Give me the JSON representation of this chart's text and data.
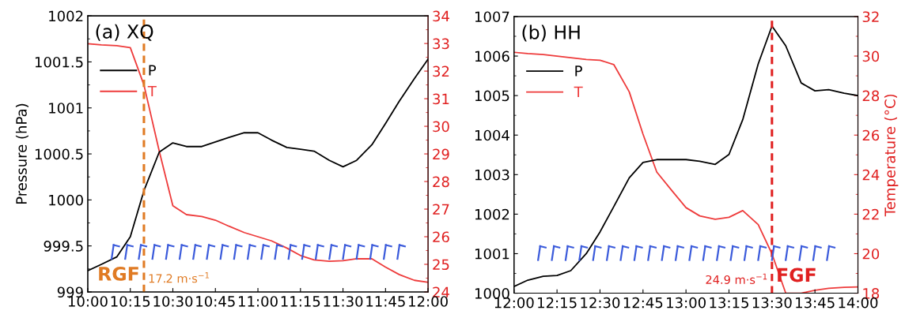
{
  "chart_data": [
    {
      "type": "line",
      "title": "(a) XQ",
      "ylabel": "Pressure (hPa)",
      "x": [
        10.0,
        10.08,
        10.17,
        10.25,
        10.33,
        10.42,
        10.5,
        10.58,
        10.67,
        10.75,
        10.83,
        10.92,
        11.0,
        11.08,
        11.17,
        11.25,
        11.33,
        11.42,
        11.5,
        11.58,
        11.67,
        11.75,
        11.83,
        11.92,
        12.0
      ],
      "series": [
        {
          "name": "P",
          "color": "#000000",
          "values": [
            999.23,
            999.3,
            999.38,
            999.6,
            1000.1,
            1000.52,
            1000.62,
            1000.58,
            1000.58,
            1000.63,
            1000.68,
            1000.73,
            1000.73,
            1000.65,
            1000.57,
            1000.55,
            1000.53,
            1000.43,
            1000.36,
            1000.43,
            1000.6,
            1000.83,
            1001.07,
            1001.32,
            1001.53
          ]
        },
        {
          "name": "T",
          "color": "#ee3b3b",
          "axis": "y2",
          "values": [
            32.99,
            32.95,
            32.92,
            32.85,
            31.5,
            29.1,
            27.12,
            26.8,
            26.73,
            26.6,
            26.38,
            26.15,
            26.0,
            25.85,
            25.59,
            25.32,
            25.16,
            25.11,
            25.13,
            25.2,
            25.2,
            24.9,
            24.63,
            24.42,
            24.35
          ]
        }
      ],
      "xlim": [
        10,
        12
      ],
      "xticks": [
        {
          "value": 10,
          "label": "10:00"
        },
        {
          "value": 10.25,
          "label": "10:15"
        },
        {
          "value": 10.5,
          "label": "10:30"
        },
        {
          "value": 10.75,
          "label": "10:45"
        },
        {
          "value": 11,
          "label": "11:00"
        },
        {
          "value": 11.25,
          "label": "11:15"
        },
        {
          "value": 11.5,
          "label": "11:30"
        },
        {
          "value": 11.75,
          "label": "11:45"
        },
        {
          "value": 12,
          "label": "12:00"
        }
      ],
      "ylim": [
        999,
        1002
      ],
      "yticks": [
        999,
        999.5,
        1000,
        1000.5,
        1001,
        1001.5,
        1002
      ],
      "y2lim": [
        24,
        34
      ],
      "y2ticks": [
        24,
        25,
        26,
        27,
        28,
        29,
        30,
        31,
        32,
        33,
        34
      ],
      "ref_lines": [
        {
          "axis": "x",
          "value": 10.33,
          "color": "#e07b24",
          "line_style": "dashed"
        }
      ],
      "annotations": [
        "RGF",
        "17.2 m·s$^{−1}$"
      ],
      "legend": "top left",
      "grid": false
    },
    {
      "type": "line",
      "title": "(b) HH",
      "y2label": "Temperature (°C)",
      "x": [
        12.0,
        12.08,
        12.17,
        12.25,
        12.33,
        12.42,
        12.5,
        12.58,
        12.67,
        12.75,
        12.83,
        12.92,
        13.0,
        13.08,
        13.17,
        13.25,
        13.33,
        13.42,
        13.5,
        13.58,
        13.67,
        13.75,
        13.83,
        13.92,
        14.0
      ],
      "series": [
        {
          "name": "P",
          "color": "#000000",
          "values": [
            1000.17,
            1000.33,
            1000.43,
            1000.45,
            1000.57,
            1001.0,
            1001.55,
            1002.19,
            1002.92,
            1003.31,
            1003.38,
            1003.38,
            1003.38,
            1003.34,
            1003.26,
            1003.51,
            1004.39,
            1005.8,
            1006.76,
            1006.26,
            1005.32,
            1005.12,
            1005.15,
            1005.06,
            1005.0
          ]
        },
        {
          "name": "T",
          "color": "#ee3b3b",
          "axis": "y2",
          "values": [
            30.19,
            30.13,
            30.08,
            30.0,
            29.92,
            29.83,
            29.79,
            29.57,
            28.19,
            26.05,
            24.13,
            23.17,
            22.33,
            21.91,
            21.74,
            21.84,
            22.18,
            21.47,
            19.99,
            18.0,
            18.0,
            18.15,
            18.25,
            18.3,
            18.32
          ]
        }
      ],
      "xlim": [
        12,
        14
      ],
      "xticks": [
        {
          "value": 12,
          "label": "12:00"
        },
        {
          "value": 12.25,
          "label": "12:15"
        },
        {
          "value": 12.5,
          "label": "12:30"
        },
        {
          "value": 12.75,
          "label": "12:45"
        },
        {
          "value": 13,
          "label": "13:00"
        },
        {
          "value": 13.25,
          "label": "13:15"
        },
        {
          "value": 13.5,
          "label": "13:30"
        },
        {
          "value": 13.75,
          "label": "13:45"
        },
        {
          "value": 14,
          "label": "14:00"
        }
      ],
      "ylim": [
        1000,
        1007
      ],
      "yticks": [
        1000,
        1001,
        1002,
        1003,
        1004,
        1005,
        1006,
        1007
      ],
      "y2lim": [
        18,
        32
      ],
      "y2ticks": [
        18,
        20,
        22,
        24,
        26,
        28,
        30,
        32
      ],
      "ref_lines": [
        {
          "axis": "x",
          "value": 13.5,
          "color": "#e02020",
          "line_style": "dashed"
        }
      ],
      "annotations": [
        "24.9 m·s$^{−1}$",
        "FGF"
      ],
      "legend": "top left",
      "grid": false
    }
  ]
}
